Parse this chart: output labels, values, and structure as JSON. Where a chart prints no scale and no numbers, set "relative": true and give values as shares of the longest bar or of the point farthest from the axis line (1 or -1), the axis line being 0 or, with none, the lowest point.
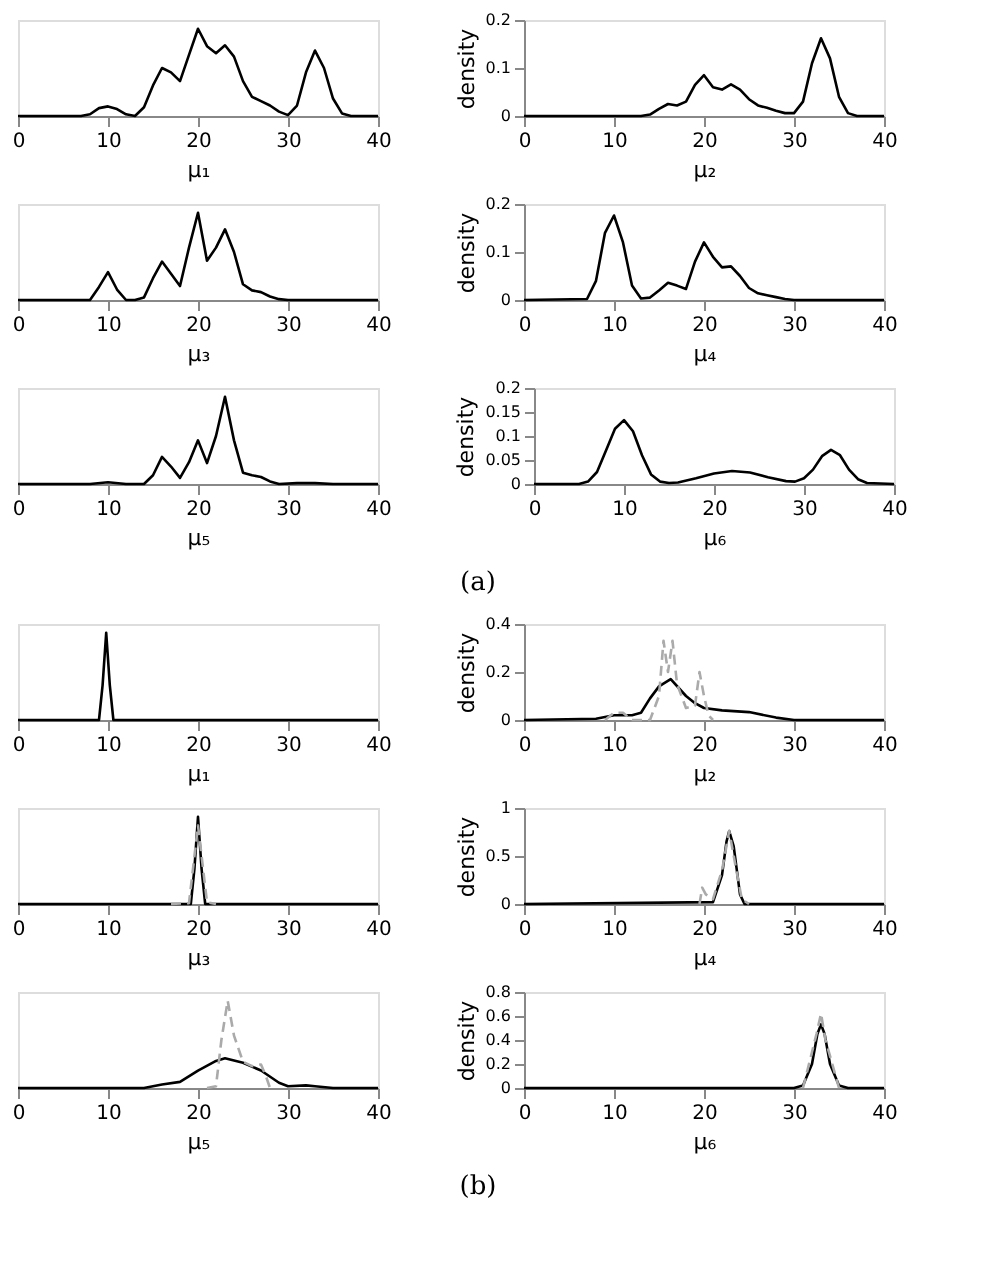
{
  "chart_data": [
    {
      "type": "line",
      "relative": true,
      "xlabel": "μ₁",
      "xlim": [
        0,
        40
      ],
      "xticks": [
        0,
        10,
        20,
        30,
        40
      ],
      "series": [
        {
          "color": "#000000",
          "x": [
            0,
            7,
            8,
            9,
            10,
            11,
            12,
            13,
            14,
            15,
            16,
            17,
            18,
            19,
            20,
            21,
            22,
            23,
            24,
            25,
            26,
            27,
            28,
            29,
            30,
            31,
            32,
            33,
            34,
            35,
            36,
            37,
            40
          ],
          "values": [
            0,
            0,
            0.02,
            0.09,
            0.11,
            0.08,
            0.02,
            0,
            0.1,
            0.35,
            0.55,
            0.5,
            0.4,
            0.7,
            1,
            0.8,
            0.72,
            0.81,
            0.68,
            0.4,
            0.22,
            0.17,
            0.12,
            0.05,
            0.01,
            0.12,
            0.5,
            0.75,
            0.55,
            0.2,
            0.03,
            0,
            0
          ]
        }
      ]
    },
    {
      "type": "line",
      "ylabel": "density",
      "xlabel": "μ₂",
      "xlim": [
        0,
        40
      ],
      "xticks": [
        0,
        10,
        20,
        30,
        40
      ],
      "ylim": [
        0,
        0.2
      ],
      "yticks": [
        0,
        0.1,
        0.2
      ],
      "series": [
        {
          "color": "#000000",
          "x": [
            0,
            13,
            14,
            15,
            16,
            17,
            18,
            19,
            20,
            21,
            22,
            23,
            24,
            25,
            26,
            27,
            28,
            29,
            30,
            31,
            32,
            33,
            34,
            35,
            36,
            37,
            40
          ],
          "values": [
            0,
            0,
            0.003,
            0.015,
            0.025,
            0.022,
            0.03,
            0.065,
            0.085,
            0.06,
            0.055,
            0.066,
            0.055,
            0.035,
            0.022,
            0.017,
            0.011,
            0.006,
            0.006,
            0.03,
            0.11,
            0.162,
            0.12,
            0.04,
            0.006,
            0,
            0
          ]
        }
      ]
    },
    {
      "type": "line",
      "relative": true,
      "xlabel": "μ₃",
      "xlim": [
        0,
        40
      ],
      "xticks": [
        0,
        10,
        20,
        30,
        40
      ],
      "series": [
        {
          "color": "#000000",
          "x": [
            0,
            8,
            9,
            10,
            11,
            12,
            13,
            14,
            15,
            16,
            17,
            18,
            19,
            20,
            21,
            22,
            23,
            24,
            25,
            26,
            27,
            28,
            29,
            30,
            40
          ],
          "values": [
            0,
            0,
            0.15,
            0.32,
            0.12,
            0,
            0,
            0.03,
            0.25,
            0.44,
            0.3,
            0.16,
            0.6,
            1,
            0.45,
            0.6,
            0.81,
            0.55,
            0.18,
            0.11,
            0.09,
            0.04,
            0.01,
            0,
            0
          ]
        }
      ]
    },
    {
      "type": "line",
      "ylabel": "density",
      "xlabel": "μ₄",
      "xlim": [
        0,
        40
      ],
      "xticks": [
        0,
        10,
        20,
        30,
        40
      ],
      "ylim": [
        0,
        0.2
      ],
      "yticks": [
        0,
        0.1,
        0.2
      ],
      "series": [
        {
          "color": "#000000",
          "x": [
            0,
            7,
            8,
            9,
            10,
            11,
            12,
            13,
            14,
            15,
            16,
            17,
            18,
            19,
            20,
            21,
            22,
            23,
            24,
            25,
            26,
            27,
            28,
            29,
            30,
            40
          ],
          "values": [
            0,
            0.002,
            0.04,
            0.14,
            0.176,
            0.12,
            0.03,
            0.003,
            0.005,
            0.02,
            0.036,
            0.03,
            0.023,
            0.08,
            0.12,
            0.09,
            0.068,
            0.07,
            0.05,
            0.025,
            0.014,
            0.01,
            0.006,
            0.002,
            0,
            0
          ]
        }
      ]
    },
    {
      "type": "line",
      "relative": true,
      "xlabel": "μ₅",
      "xlim": [
        0,
        40
      ],
      "xticks": [
        0,
        10,
        20,
        30,
        40
      ],
      "series": [
        {
          "color": "#000000",
          "x": [
            0,
            8,
            10,
            12,
            14,
            15,
            16,
            17,
            18,
            19,
            20,
            21,
            22,
            23,
            24,
            25,
            26,
            27,
            28,
            29,
            31,
            33,
            35,
            40
          ],
          "values": [
            0,
            0,
            0.02,
            0,
            0,
            0.1,
            0.31,
            0.2,
            0.07,
            0.25,
            0.5,
            0.24,
            0.55,
            1,
            0.5,
            0.13,
            0.1,
            0.08,
            0.03,
            0,
            0.01,
            0.01,
            0,
            0
          ]
        }
      ]
    },
    {
      "type": "line",
      "ylabel": "density",
      "xlabel": "μ₆",
      "xlim": [
        0,
        40
      ],
      "xticks": [
        0,
        10,
        20,
        30,
        40
      ],
      "ylim": [
        0,
        0.2
      ],
      "yticks": [
        0,
        0.05,
        0.1,
        0.15,
        0.2
      ],
      "annotations": [
        "(a)"
      ],
      "series": [
        {
          "color": "#000000",
          "x": [
            0,
            5,
            6,
            7,
            8,
            9,
            10,
            11,
            12,
            13,
            14,
            15,
            16,
            18,
            20,
            22,
            24,
            26,
            28,
            29,
            30,
            31,
            32,
            33,
            34,
            35,
            36,
            37,
            40
          ],
          "values": [
            0,
            0,
            0.005,
            0.025,
            0.07,
            0.115,
            0.133,
            0.11,
            0.06,
            0.02,
            0.005,
            0.002,
            0.003,
            0.012,
            0.022,
            0.027,
            0.024,
            0.014,
            0.006,
            0.005,
            0.012,
            0.03,
            0.058,
            0.071,
            0.06,
            0.03,
            0.01,
            0.002,
            0
          ]
        }
      ]
    },
    {
      "type": "line",
      "relative": true,
      "xlabel": "μ₁",
      "xlim": [
        0,
        40
      ],
      "xticks": [
        0,
        10,
        20,
        30,
        40
      ],
      "series": [
        {
          "color": "#000000",
          "x": [
            0,
            9,
            9.4,
            9.8,
            10.2,
            10.6,
            40
          ],
          "values": [
            0,
            0,
            0.4,
            1,
            0.4,
            0,
            0
          ]
        }
      ]
    },
    {
      "type": "line",
      "ylabel": "density",
      "xlabel": "μ₂",
      "xlim": [
        0,
        40
      ],
      "xticks": [
        0,
        10,
        20,
        30,
        40
      ],
      "ylim": [
        0,
        0.4
      ],
      "yticks": [
        0,
        0.2,
        0.4
      ],
      "series": [
        {
          "color": "#000000",
          "x": [
            0,
            8,
            10,
            12,
            13,
            14,
            15,
            16.3,
            18,
            19,
            20,
            22,
            25,
            28,
            30,
            40
          ],
          "values": [
            0,
            0.005,
            0.02,
            0.02,
            0.03,
            0.09,
            0.14,
            0.17,
            0.1,
            0.07,
            0.05,
            0.04,
            0.033,
            0.01,
            0,
            0
          ]
        },
        {
          "color": "#aaaaaa",
          "line_style": "dashed",
          "x": [
            9,
            10,
            11,
            12,
            14,
            15,
            15.5,
            16,
            16.5,
            17,
            18,
            19,
            19.5,
            20,
            20.5,
            21
          ],
          "values": [
            0,
            0.03,
            0.03,
            0,
            0,
            0.1,
            0.33,
            0.2,
            0.33,
            0.15,
            0.05,
            0.06,
            0.2,
            0.1,
            0.02,
            0
          ]
        }
      ]
    },
    {
      "type": "line",
      "relative": true,
      "xlabel": "μ₃",
      "xlim": [
        0,
        40
      ],
      "xticks": [
        0,
        10,
        20,
        30,
        40
      ],
      "series": [
        {
          "color": "#000000",
          "x": [
            0,
            19.2,
            19.6,
            20,
            20.4,
            20.8,
            40
          ],
          "values": [
            0,
            0,
            0.4,
            1,
            0.4,
            0,
            0
          ]
        },
        {
          "color": "#aaaaaa",
          "line_style": "dashed",
          "x": [
            17,
            19,
            20,
            21,
            22
          ],
          "values": [
            0,
            0.01,
            0.9,
            0.02,
            0
          ]
        }
      ]
    },
    {
      "type": "line",
      "ylabel": "density",
      "xlabel": "μ₄",
      "xlim": [
        0,
        40
      ],
      "xticks": [
        0,
        10,
        20,
        30,
        40
      ],
      "ylim": [
        0,
        1
      ],
      "yticks": [
        0,
        0.5,
        1
      ],
      "series": [
        {
          "color": "#000000",
          "x": [
            0,
            21,
            22,
            22.5,
            22.8,
            23.3,
            24,
            24.5,
            40
          ],
          "values": [
            0,
            0.02,
            0.3,
            0.65,
            0.76,
            0.6,
            0.1,
            0,
            0
          ]
        },
        {
          "color": "#aaaaaa",
          "line_style": "dashed",
          "x": [
            19.5,
            19.8,
            20.2,
            21,
            22,
            22.8,
            23.5,
            24.2,
            25
          ],
          "values": [
            0,
            0.17,
            0.1,
            0.05,
            0.35,
            0.76,
            0.4,
            0.05,
            0
          ]
        }
      ]
    },
    {
      "type": "line",
      "relative": true,
      "xlabel": "μ₅",
      "xlim": [
        0,
        40
      ],
      "xticks": [
        0,
        10,
        20,
        30,
        40
      ],
      "series": [
        {
          "color": "#000000",
          "x": [
            0,
            14,
            16,
            18,
            20,
            22,
            23,
            25,
            27,
            29,
            30,
            32,
            33,
            35,
            40
          ],
          "values": [
            0,
            0,
            0.04,
            0.07,
            0.2,
            0.31,
            0.34,
            0.29,
            0.2,
            0.06,
            0.02,
            0.03,
            0.02,
            0,
            0
          ]
        },
        {
          "color": "#aaaaaa",
          "line_style": "dashed",
          "x": [
            21,
            22,
            22.6,
            23.3,
            24,
            25,
            26,
            27,
            27.5,
            28
          ],
          "values": [
            0,
            0.02,
            0.55,
            1,
            0.6,
            0.3,
            0.25,
            0.27,
            0.15,
            0
          ]
        }
      ]
    },
    {
      "type": "line",
      "ylabel": "density",
      "xlabel": "μ₆",
      "xlim": [
        0,
        40
      ],
      "xticks": [
        0,
        10,
        20,
        30,
        40
      ],
      "ylim": [
        0,
        0.8
      ],
      "yticks": [
        0,
        0.2,
        0.4,
        0.6,
        0.8
      ],
      "annotations": [
        "(b)"
      ],
      "series": [
        {
          "color": "#000000",
          "x": [
            0,
            30,
            31,
            32,
            32.6,
            33,
            33.4,
            34,
            35,
            36,
            40
          ],
          "values": [
            0,
            0,
            0.02,
            0.2,
            0.45,
            0.53,
            0.45,
            0.2,
            0.02,
            0,
            0
          ]
        },
        {
          "color": "#aaaaaa",
          "line_style": "dashed",
          "x": [
            31,
            32.5,
            33,
            33.5,
            35
          ],
          "values": [
            0,
            0.45,
            0.62,
            0.4,
            0
          ]
        }
      ]
    }
  ]
}
